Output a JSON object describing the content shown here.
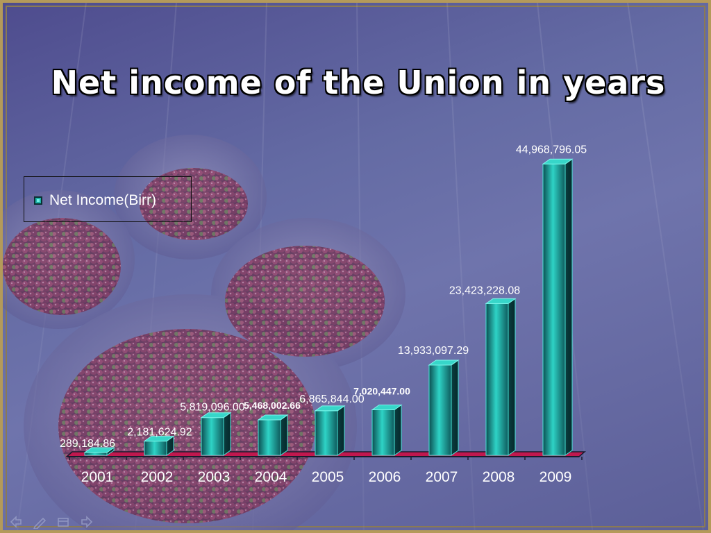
{
  "slide": {
    "title": "Net income of the  Union in years"
  },
  "chart_data": {
    "type": "bar",
    "title": "Net income of the  Union in years",
    "xlabel": "",
    "ylabel": "",
    "categories": [
      "2001",
      "2002",
      "2003",
      "2004",
      "2005",
      "2006",
      "2007",
      "2008",
      "2009"
    ],
    "series": [
      {
        "name": "Net Income(Birr)",
        "values": [
          289184.86,
          2181624.92,
          5819096.0,
          5468002.66,
          6865844.0,
          7020447.0,
          13933097.29,
          23423228.08,
          44968796.05
        ],
        "labels": [
          "289,184.86",
          "2,181,624.92",
          "5,819,096.00",
          "5,468,002.66",
          "6,865,844.00",
          "7,020,447.00",
          "13,933,097.29",
          "23,423,228.08",
          "44,968,796.05"
        ]
      }
    ],
    "ylim": [
      0,
      45000000
    ],
    "grid": false,
    "legend_position": "top-left",
    "colors": {
      "bar": "#1fb3a8",
      "bar_dark": "#0c4f52",
      "floor": "#c0184e",
      "value_label": "#ffffff",
      "category_label": "#ffffff"
    }
  },
  "nav": {
    "icons": [
      "back-arrow-icon",
      "pen-icon",
      "menu-icon",
      "forward-arrow-icon"
    ]
  }
}
